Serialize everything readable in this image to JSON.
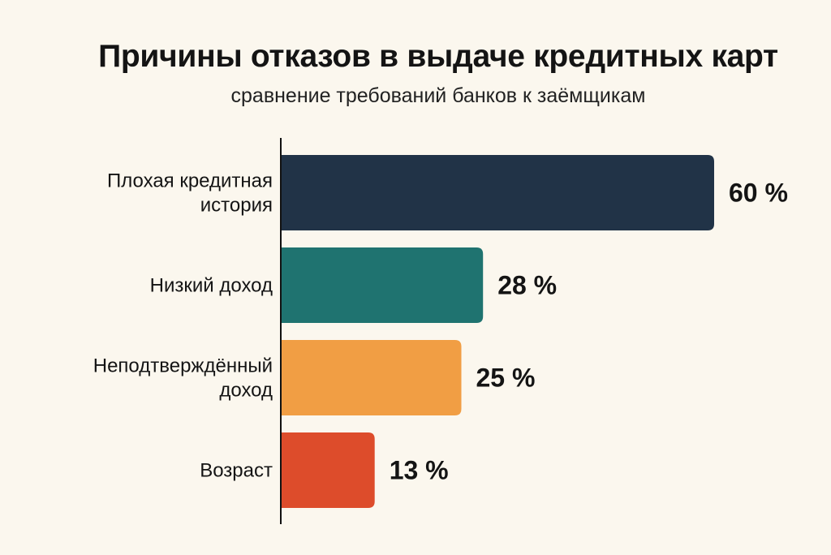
{
  "chart_data": {
    "type": "bar",
    "orientation": "horizontal",
    "title": "Причины отказов в выдаче кредитных карт",
    "subtitle": "сравнение требований банков к заёмщикам",
    "unit": "%",
    "xlim": [
      0,
      60
    ],
    "grid": false,
    "categories": [
      [
        "Плохая кредитная",
        "история"
      ],
      [
        "Низкий доход"
      ],
      [
        "Неподтверждённый",
        "доход"
      ],
      [
        "Возраст"
      ]
    ],
    "values": [
      60,
      28,
      25,
      13
    ],
    "value_labels": [
      "60 %",
      "28 %",
      "25 %",
      "13 %"
    ],
    "colors": [
      "#213347",
      "#1f7370",
      "#f19e44",
      "#dd4c2b"
    ]
  }
}
